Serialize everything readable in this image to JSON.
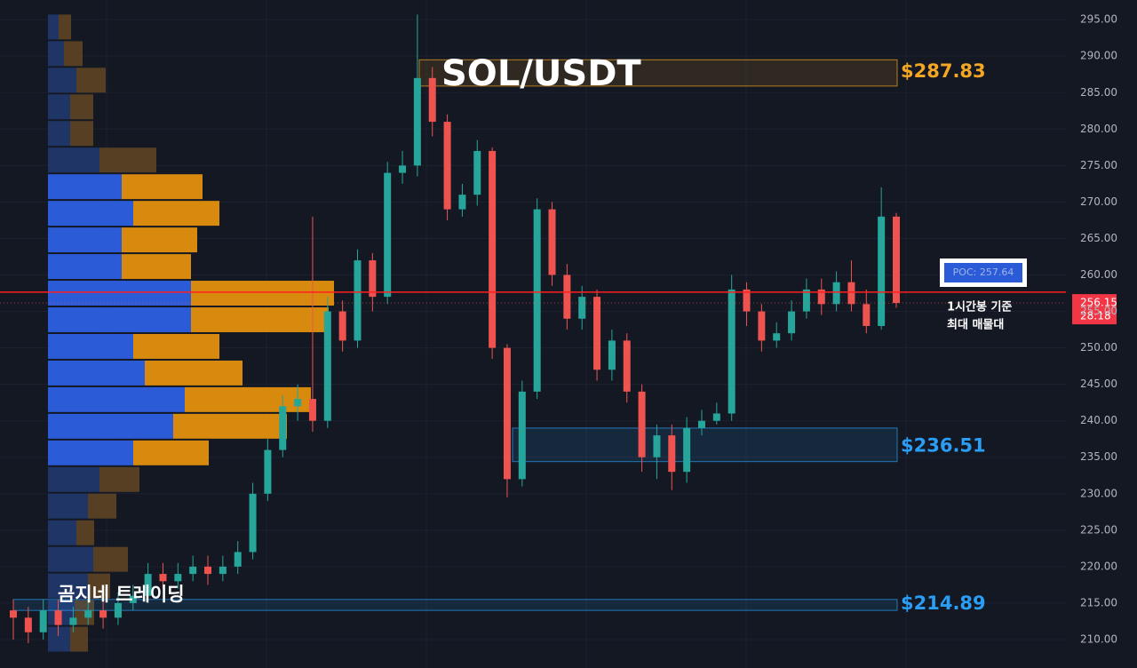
{
  "chart_data": {
    "type": "candlestick",
    "title": "SOL/USDT",
    "watermark": "곰지네 트레이딩",
    "ylim": [
      206.1,
      297.7
    ],
    "yticks": [
      {
        "value": 210,
        "label": "210.00"
      },
      {
        "value": 215,
        "label": "215.00"
      },
      {
        "value": 220,
        "label": "220.00"
      },
      {
        "value": 225,
        "label": "225.00"
      },
      {
        "value": 230,
        "label": "230.00"
      },
      {
        "value": 235,
        "label": "235.00"
      },
      {
        "value": 240,
        "label": "240.00"
      },
      {
        "value": 245,
        "label": "245.00"
      },
      {
        "value": 250,
        "label": "250.00"
      },
      {
        "value": 255,
        "label": "255.00"
      },
      {
        "value": 260,
        "label": "260.00"
      },
      {
        "value": 265,
        "label": "265.00"
      },
      {
        "value": 270,
        "label": "270.00"
      },
      {
        "value": 275,
        "label": "275.00"
      },
      {
        "value": 280,
        "label": "280.00"
      },
      {
        "value": 285,
        "label": "285.00"
      },
      {
        "value": 290,
        "label": "290.00"
      },
      {
        "value": 295,
        "label": "295.00"
      }
    ],
    "grid": true,
    "up_color": "#26a69a",
    "down_color": "#ef5350",
    "open": [
      214,
      213,
      211,
      214,
      212,
      213,
      214,
      213,
      215,
      216,
      219,
      218,
      219,
      220,
      219,
      220,
      222,
      230,
      236,
      242,
      243,
      240,
      255,
      251,
      262,
      257,
      274,
      275,
      287,
      281,
      269,
      271,
      277,
      250,
      232,
      244,
      269,
      260,
      254,
      257,
      247,
      251,
      244,
      235,
      238,
      233,
      239,
      240,
      241,
      258,
      255,
      251,
      252,
      255,
      258,
      256,
      259,
      256,
      253,
      268
    ],
    "high": [
      215.5,
      214.5,
      215.5,
      215.5,
      214.5,
      215.5,
      215.5,
      216.5,
      217.5,
      220.5,
      220.5,
      220.5,
      221.5,
      221.5,
      221.5,
      223.5,
      231.5,
      237.5,
      243.5,
      245,
      268,
      257,
      256.5,
      263.5,
      263,
      275.5,
      277,
      295.7,
      288.5,
      282,
      272.5,
      278.5,
      277.5,
      250.5,
      245.5,
      270.5,
      270,
      261.5,
      258.5,
      258,
      252.5,
      252,
      245,
      239.5,
      239.5,
      240.5,
      241.5,
      242.5,
      260,
      259,
      256,
      253.5,
      256.5,
      259.5,
      259.5,
      260.5,
      262,
      258,
      272,
      268.5
    ],
    "low": [
      210,
      209.5,
      210,
      210.5,
      211,
      212,
      211.5,
      212,
      214,
      215,
      217,
      217,
      218,
      217.5,
      218,
      219,
      221,
      229,
      235,
      240,
      238.5,
      239,
      249.5,
      250,
      255,
      256,
      272.5,
      273.5,
      279,
      267.5,
      268,
      269.5,
      248.5,
      229.5,
      231,
      243,
      258.5,
      252.5,
      252.5,
      245.5,
      245.5,
      242.5,
      233,
      232,
      230.5,
      231.5,
      238,
      239.5,
      240,
      253,
      249.5,
      250,
      251,
      254,
      254.5,
      255,
      255,
      252,
      252.5,
      255.5
    ],
    "close": [
      213,
      211,
      214,
      212,
      213,
      214,
      213,
      215,
      216,
      219,
      218,
      219,
      220,
      219,
      220,
      222,
      230,
      236,
      242,
      243,
      240,
      255,
      251,
      262,
      257,
      274,
      275,
      287,
      281,
      269,
      271,
      277,
      250,
      232,
      244,
      269,
      260,
      254,
      257,
      247,
      251,
      244,
      235,
      238,
      233,
      239,
      240,
      241,
      258,
      255,
      251,
      252,
      255,
      258,
      256,
      259,
      256,
      253,
      268,
      256.15
    ],
    "volume_profile": {
      "levels": [
        294.0,
        290.35,
        286.7,
        283.05,
        279.4,
        275.75,
        272.1,
        268.45,
        264.8,
        261.15,
        257.5,
        253.85,
        250.2,
        246.55,
        242.9,
        239.25,
        235.6,
        231.95,
        228.3,
        224.65,
        221.0,
        217.35,
        213.7,
        210.05
      ],
      "buy": [
        12,
        18,
        32,
        25,
        25,
        58,
        83,
        96,
        83,
        83,
        161,
        161,
        96,
        109,
        154,
        141,
        96,
        58,
        45,
        32,
        51,
        45,
        30,
        25
      ],
      "sell": [
        14,
        21,
        33,
        26,
        26,
        64,
        91,
        97,
        85,
        78,
        161,
        155,
        97,
        110,
        142,
        128,
        85,
        45,
        32,
        20,
        39,
        25,
        22,
        20
      ],
      "value_area": [
        233.8,
        273.9
      ],
      "buy_color": "#2c5bd8",
      "sell_color": "#d78a0e",
      "buy_dim_color": "#1f3566",
      "sell_dim_color": "#5e4423"
    },
    "poc": {
      "value": 257.64,
      "label": "POC: 257.64",
      "color": "#ff1f1f",
      "note": [
        "1시간봉 기준",
        "최대 매물대"
      ]
    },
    "current_price": {
      "value": 256.15,
      "label": "256.15",
      "countdown": "28:18"
    },
    "zones": [
      {
        "low": 285.9,
        "high": 289.5,
        "value": 287.83,
        "label": "$287.83",
        "color": "#f5a623"
      },
      {
        "low": 234.4,
        "high": 239.0,
        "value": 236.51,
        "label": "$236.51",
        "color": "#2a9df4"
      },
      {
        "low": 214.0,
        "high": 215.5,
        "value": 214.89,
        "label": "$214.89",
        "color": "#2a9df4"
      }
    ]
  }
}
